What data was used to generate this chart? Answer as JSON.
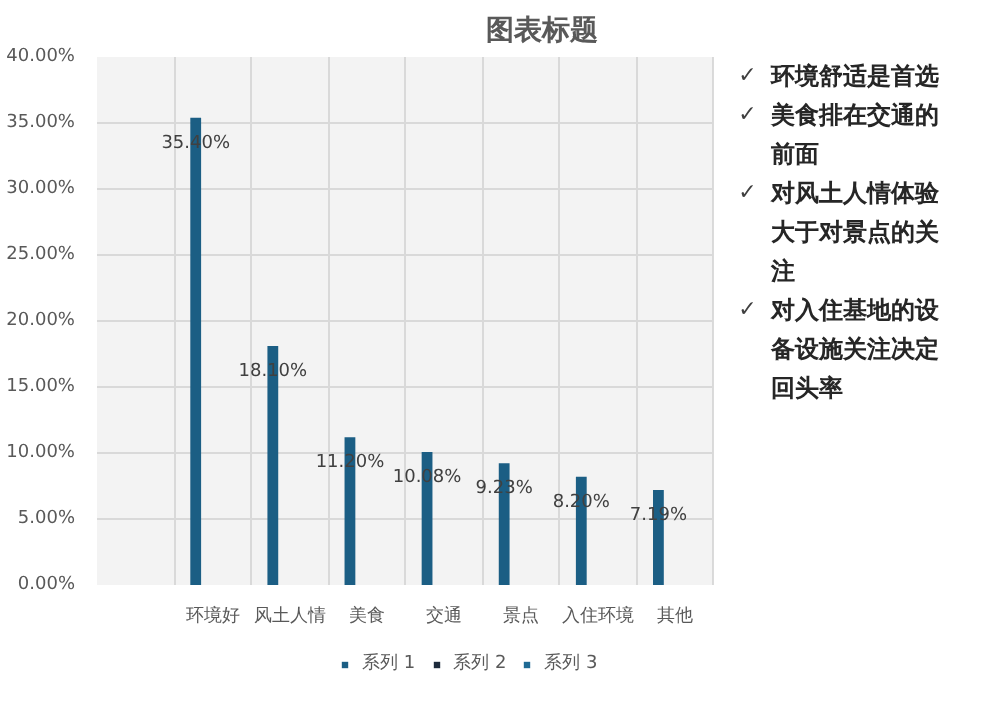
{
  "chart_data": [
    {
      "type": "bar",
      "title": "图表标题",
      "categories": [
        null,
        "环境好",
        "风土人情",
        "美食",
        "交通",
        "景点",
        "入住环境",
        "其他"
      ],
      "series": [
        {
          "name": "系列 1",
          "color": "#1b5e84",
          "values": [
            null,
            35.4,
            18.1,
            11.2,
            10.08,
            9.23,
            8.2,
            7.19
          ],
          "value_labels": [
            null,
            "35.40%",
            "18.10%",
            "11.20%",
            "10.08%",
            "9.23%",
            "8.20%",
            "7.19%"
          ]
        },
        {
          "name": "系列 2",
          "color": "#1e2b3c",
          "values": [
            null,
            null,
            null,
            null,
            null,
            null,
            null,
            null
          ]
        },
        {
          "name": "系列 3",
          "color": "#1f6a94",
          "values": [
            null,
            null,
            null,
            null,
            null,
            null,
            null,
            null
          ]
        }
      ],
      "ylim": [
        0,
        40
      ],
      "yticks": [
        {
          "value": 0,
          "label": "0.00%"
        },
        {
          "value": 5,
          "label": "5.00%"
        },
        {
          "value": 10,
          "label": "10.00%"
        },
        {
          "value": 15,
          "label": "15.00%"
        },
        {
          "value": 20,
          "label": "20.00%"
        },
        {
          "value": 25,
          "label": "25.00%"
        },
        {
          "value": 30,
          "label": "30.00%"
        },
        {
          "value": 35,
          "label": "35.00%"
        },
        {
          "value": 40,
          "label": "40.00%"
        }
      ],
      "grid": true,
      "legend": "bottom"
    },
    {
      "type": "other",
      "annotations": [
        "✓ 环境舒适是首选",
        "✓ 美食排在交通的前面",
        "✓ 对风土人情体验大于对景点的关注",
        "✓ 对入住基地的设备设施关注决定回头率"
      ]
    }
  ]
}
